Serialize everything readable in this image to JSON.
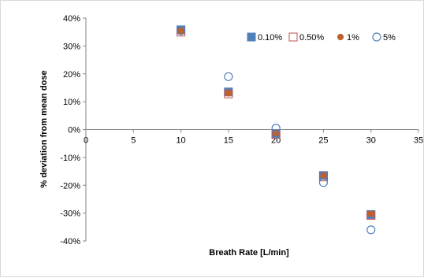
{
  "chart_data": {
    "type": "scatter",
    "xlabel": "Breath Rate [L/min]",
    "ylabel": "% deviation from mean dose",
    "xlim": [
      0,
      35
    ],
    "ylim": [
      -40,
      40
    ],
    "x_ticks": [
      0,
      5,
      10,
      15,
      20,
      25,
      30,
      35
    ],
    "x_tick_labels": [
      "0",
      "5",
      "10",
      "15",
      "20",
      "25",
      "30",
      "35"
    ],
    "y_ticks": [
      40,
      30,
      20,
      10,
      0,
      -10,
      -20,
      -30,
      -40
    ],
    "y_tick_labels": [
      "40%",
      "30%",
      "20%",
      "10%",
      "0%",
      "-10%",
      "-20%",
      "-30%",
      "-40%"
    ],
    "grid": false,
    "legend_position": "top-right",
    "x": [
      10,
      15,
      20,
      25,
      30
    ],
    "series": [
      {
        "name": "0.10%",
        "marker": "filled-square",
        "color": "#4f81bd",
        "values": [
          35.8,
          13.5,
          -1.5,
          -16.5,
          -30.5
        ]
      },
      {
        "name": "0.50%",
        "marker": "open-square",
        "color": "#c0504d",
        "values": [
          35.0,
          12.8,
          -1.8,
          -17.0,
          -30.8
        ]
      },
      {
        "name": "1%",
        "marker": "filled-circle",
        "color": "#c0602a",
        "values": [
          35.3,
          13.0,
          -1.3,
          -16.8,
          -30.3
        ]
      },
      {
        "name": "5%",
        "marker": "open-circle",
        "color": "#4f81bd",
        "values": [
          35.5,
          19.0,
          0.5,
          -19.0,
          -36.0
        ]
      }
    ]
  }
}
